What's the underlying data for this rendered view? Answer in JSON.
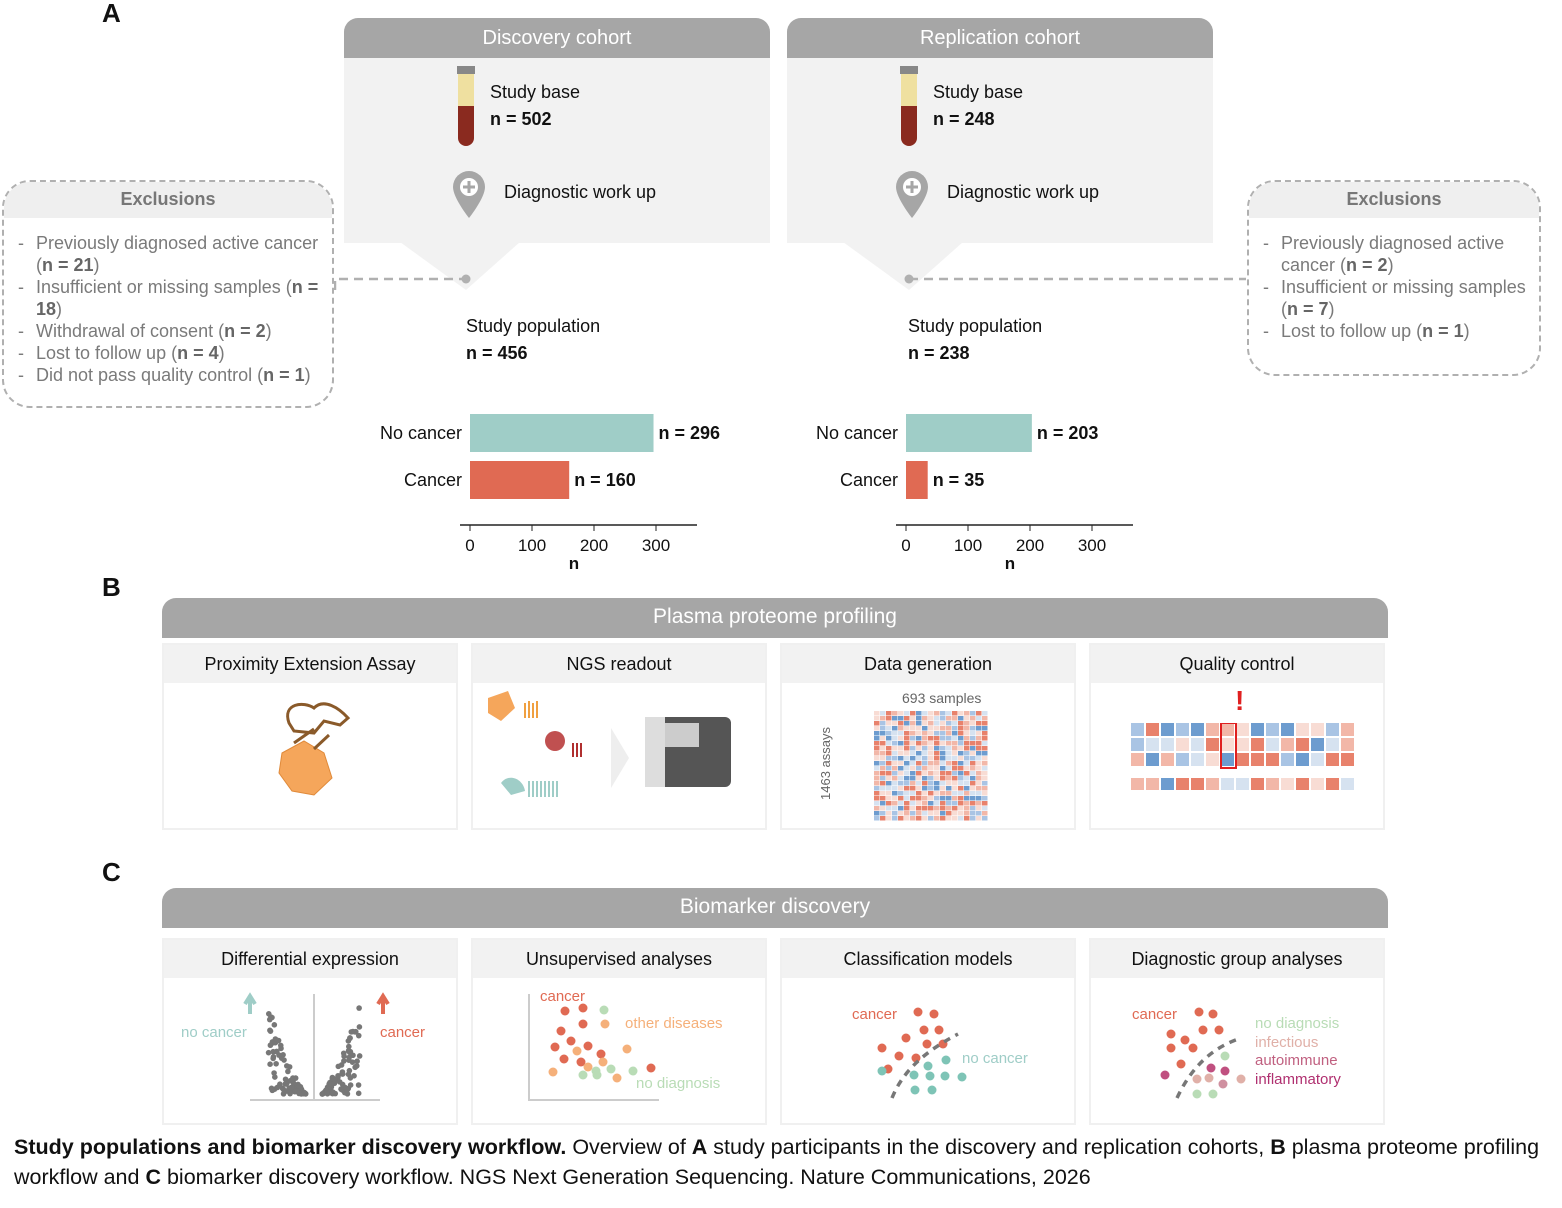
{
  "panels": {
    "a": "A",
    "b": "B",
    "c": "C"
  },
  "discovery": {
    "title": "Discovery cohort",
    "study_base": "Study base",
    "base_n": "n = 502",
    "workup": "Diagnostic work up",
    "population": "Study population",
    "pop_n": "n = 456"
  },
  "replication": {
    "title": "Replication cohort",
    "study_base": "Study base",
    "base_n": "n = 248",
    "workup": "Diagnostic work up",
    "population": "Study population",
    "pop_n": "n = 238"
  },
  "exclusions_left": {
    "title": "Exclusions",
    "items": [
      {
        "text": "Previously diagnosed active cancer (",
        "n": "n = 21",
        "end": ")"
      },
      {
        "text": "Insufficient or missing samples (",
        "n": "n = 18",
        "end": ")"
      },
      {
        "text": "Withdrawal of consent (",
        "n": "n = 2",
        "end": ")"
      },
      {
        "text": "Lost to follow up (",
        "n": "n = 4",
        "end": ")"
      },
      {
        "text": "Did not pass quality control (",
        "n": "n = 1",
        "end": ")"
      }
    ]
  },
  "exclusions_right": {
    "title": "Exclusions",
    "items": [
      {
        "text": "Previously diagnosed active cancer (",
        "n": "n = 2",
        "end": ")"
      },
      {
        "text": "Insufficient or missing samples (",
        "n": "n = 7",
        "end": ")"
      },
      {
        "text": "Lost to follow up (",
        "n": "n = 1",
        "end": ")"
      }
    ]
  },
  "chart_data": [
    {
      "type": "bar",
      "orientation": "horizontal",
      "categories": [
        "No cancer",
        "Cancer"
      ],
      "values": [
        296,
        160
      ],
      "labels": [
        "n = 296",
        "n = 160"
      ],
      "colors": [
        "#9fcdc7",
        "#e06a53"
      ],
      "xlabel": "n",
      "xticks": [
        0,
        100,
        200,
        300
      ],
      "xlim": [
        0,
        350
      ]
    },
    {
      "type": "bar",
      "orientation": "horizontal",
      "categories": [
        "No cancer",
        "Cancer"
      ],
      "values": [
        203,
        35
      ],
      "labels": [
        "n = 203",
        "n = 35"
      ],
      "colors": [
        "#9fcdc7",
        "#e06a53"
      ],
      "xlabel": "n",
      "xticks": [
        0,
        100,
        200,
        300
      ],
      "xlim": [
        0,
        350
      ]
    }
  ],
  "profiling": {
    "title": "Plasma proteome profiling",
    "cards": [
      "Proximity Extension Assay",
      "NGS readout",
      "Data generation",
      "Quality control"
    ],
    "samples_n": "693",
    "samples_label": "samples",
    "assays_label": "1463 assays",
    "qc_mark": "!"
  },
  "discovery_section": {
    "title": "Biomarker discovery",
    "cards": [
      "Differential expression",
      "Unsupervised analyses",
      "Classification models",
      "Diagnostic group analyses"
    ],
    "de": {
      "left": "no cancer",
      "right": "cancer"
    },
    "unsup": {
      "cancer": "cancer",
      "other": "other diseases",
      "nodx": "no diagnosis"
    },
    "clf": {
      "cancer": "cancer",
      "nocancer": "no cancer"
    },
    "dga": {
      "cancer": "cancer",
      "groups": [
        "no diagnosis",
        "infectious",
        "autoimmune",
        "inflammatory"
      ]
    }
  },
  "caption": {
    "bold": "Study populations and biomarker discovery workflow.",
    "t1": " Overview of ",
    "a": "A",
    "t2": " study participants in the discovery and replication cohorts, ",
    "b": "B",
    "t3": " plasma proteome profiling workflow and ",
    "c": "C",
    "t4": " biomarker discovery workflow. NGS Next Generation Sequencing. Nature Communications, 2026"
  },
  "colors": {
    "teal": "#9fcdc7",
    "red": "#e06a53",
    "grey": "#a6a6a6"
  }
}
